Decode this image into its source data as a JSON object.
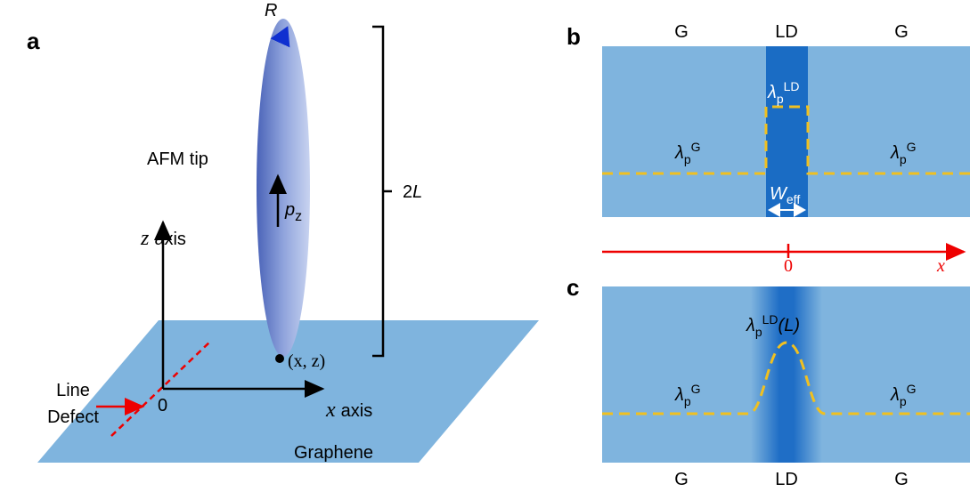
{
  "panel_a": {
    "label": "a",
    "tip_radius": "R",
    "tip_length": {
      "coef": "2",
      "var": "L"
    },
    "tip_label": "AFM tip",
    "dipole": {
      "symbol": "p",
      "sub": "z"
    },
    "z_axis": {
      "var": "z",
      "word": "axis"
    },
    "x_axis": {
      "var": "x",
      "word": "axis"
    },
    "origin": "0",
    "point": "(x, z)",
    "defect": [
      "Line",
      "Defect"
    ],
    "sheet": "Graphene"
  },
  "panel_b": {
    "label": "b",
    "regions": [
      "G",
      "LD",
      "G"
    ],
    "ld_wavelength": {
      "symbol": "λ",
      "sub": "p",
      "sup": "LD"
    },
    "g_wavelength_left": {
      "symbol": "λ",
      "sub": "p",
      "sup": "G"
    },
    "g_wavelength_right": {
      "symbol": "λ",
      "sub": "p",
      "sup": "G"
    },
    "width": {
      "symbol": "W",
      "sub": "eff"
    }
  },
  "axis": {
    "origin": "0",
    "var": "x"
  },
  "panel_c": {
    "label": "c",
    "regions": [
      "G",
      "LD",
      "G"
    ],
    "ld_wavelength": {
      "symbol": "λ",
      "sub": "p",
      "sup": "LD",
      "suffix": "(L)"
    },
    "g_wavelength_left": {
      "symbol": "λ",
      "sub": "p",
      "sup": "G"
    },
    "g_wavelength_right": {
      "symbol": "λ",
      "sub": "p",
      "sup": "G"
    }
  }
}
